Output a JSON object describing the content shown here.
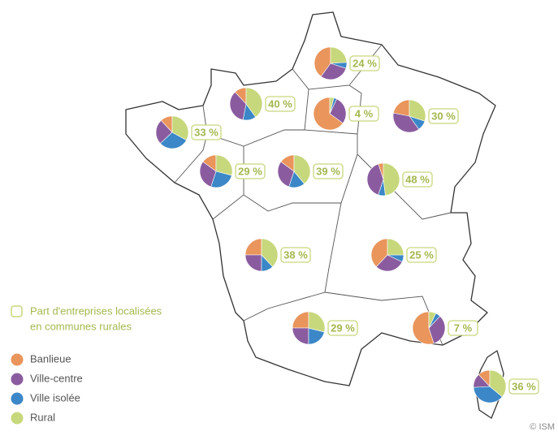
{
  "map": {
    "legend_title": [
      "Part d'entreprises localisées",
      "en communes rurales"
    ],
    "categories": [
      "Banlieue",
      "Ville-centre",
      "Ville isolée",
      "Rural"
    ],
    "colors": [
      "#e9955b",
      "#8a5c9f",
      "#3b87c7",
      "#c7d87c"
    ],
    "regions": [
      {
        "values": [
          40,
          30,
          6,
          24
        ],
        "value_label": "24 %"
      },
      {
        "values": [
          12,
          35,
          13,
          40
        ],
        "value_label": "40 %"
      },
      {
        "values": [
          65,
          28,
          3,
          4
        ],
        "value_label": "4 %"
      },
      {
        "values": [
          22,
          38,
          10,
          30
        ],
        "value_label": "30 %"
      },
      {
        "values": [
          12,
          25,
          30,
          33
        ],
        "value_label": "33 %"
      },
      {
        "values": [
          15,
          30,
          26,
          29
        ],
        "value_label": "29 %"
      },
      {
        "values": [
          15,
          30,
          16,
          39
        ],
        "value_label": "39 %"
      },
      {
        "values": [
          5,
          40,
          7,
          48
        ],
        "value_label": "48 %"
      },
      {
        "values": [
          25,
          25,
          12,
          38
        ],
        "value_label": "38 %"
      },
      {
        "values": [
          38,
          30,
          7,
          25
        ],
        "value_label": "25 %"
      },
      {
        "values": [
          25,
          25,
          21,
          29
        ],
        "value_label": "29 %"
      },
      {
        "values": [
          55,
          33,
          5,
          7
        ],
        "value_label": "7 %"
      },
      {
        "values": [
          12,
          14,
          38,
          36
        ],
        "value_label": "36 %"
      }
    ]
  },
  "credit": "© ISM"
}
